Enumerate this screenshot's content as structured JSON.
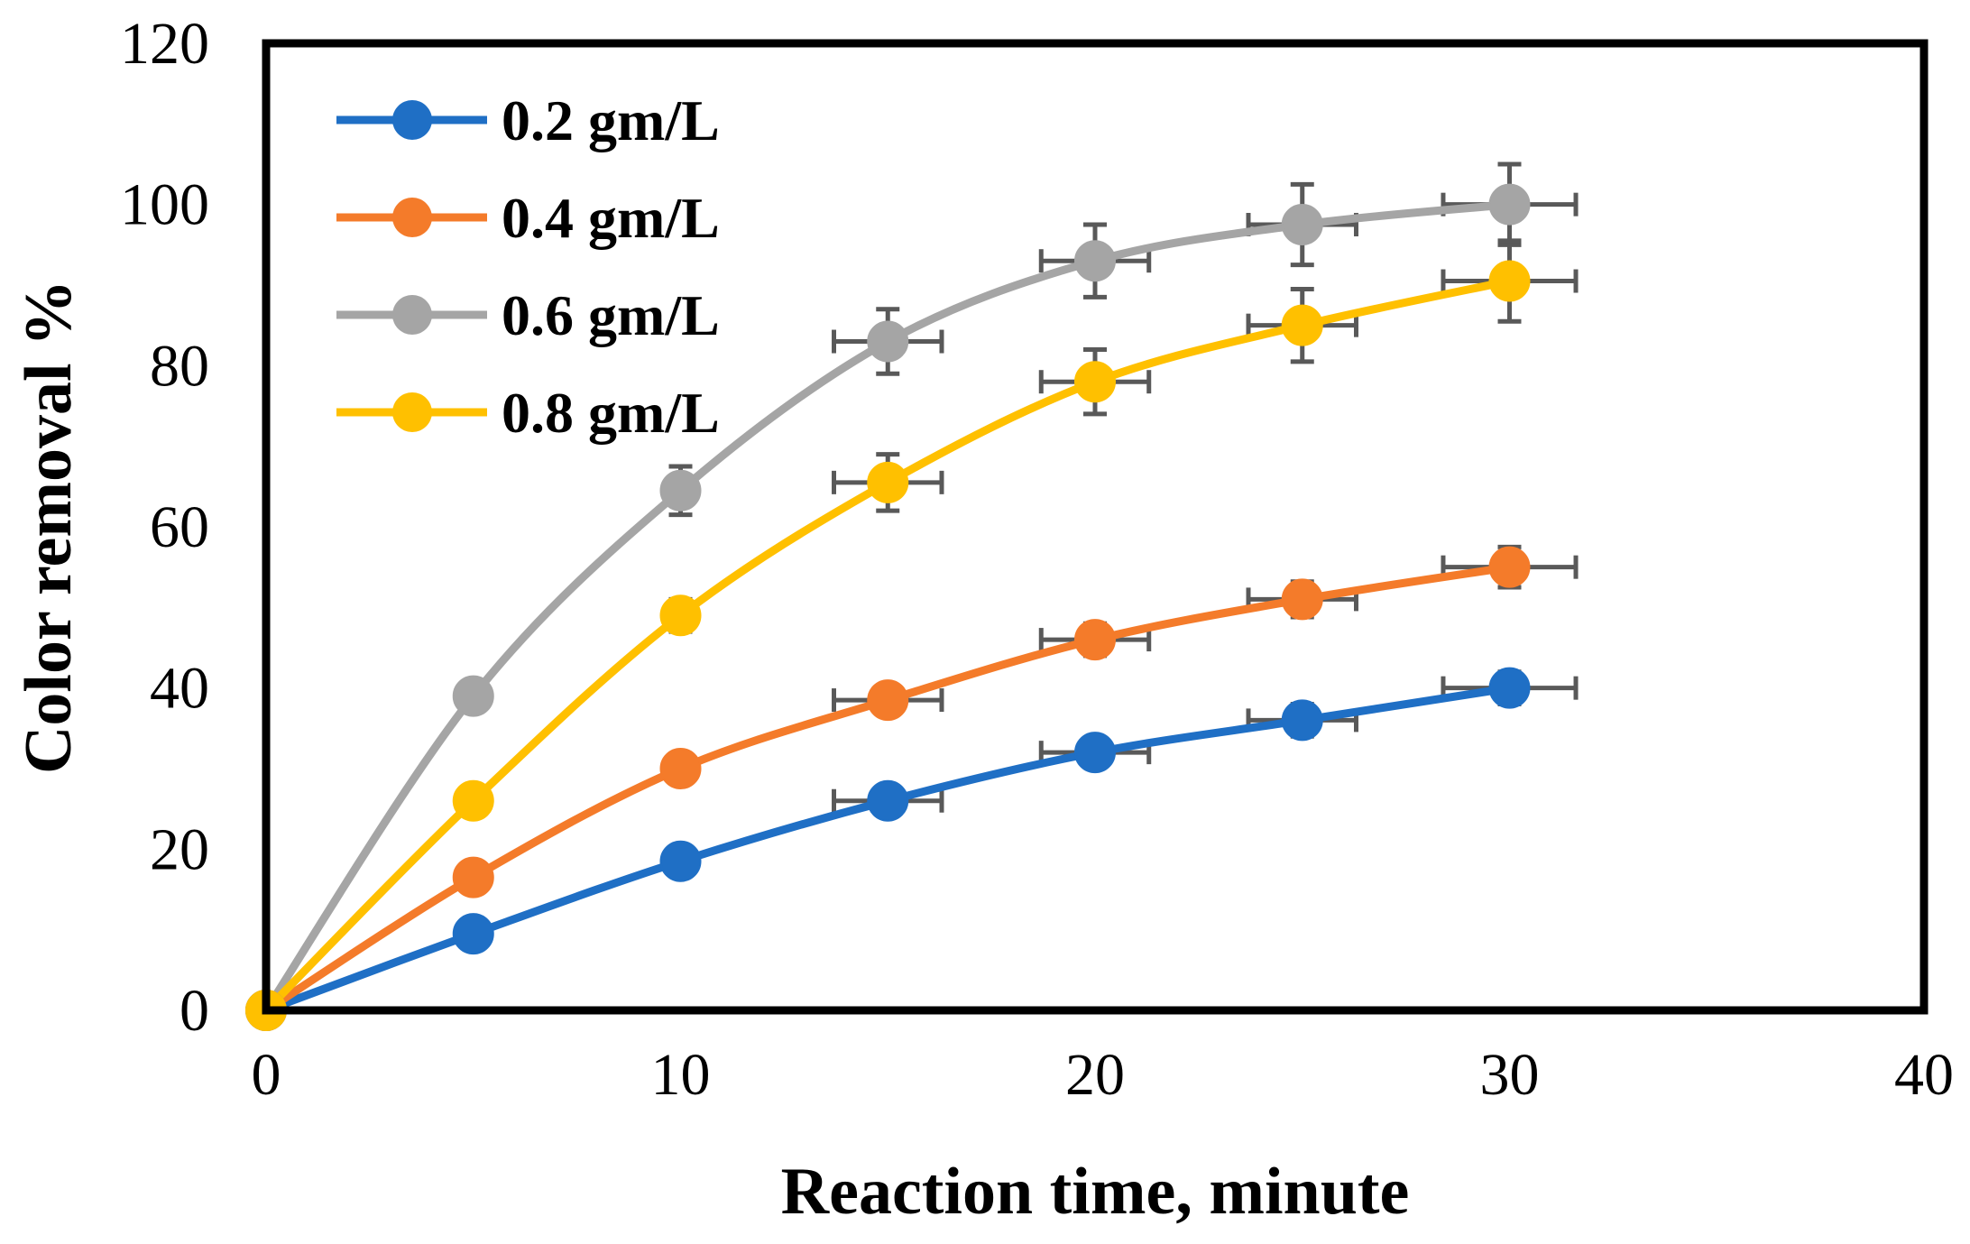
{
  "chart_data": {
    "type": "line",
    "title": "",
    "xlabel": "Reaction time, minute",
    "ylabel": "Color removal %",
    "xlim": [
      0,
      40
    ],
    "ylim": [
      0,
      120
    ],
    "xticks": [
      0,
      10,
      20,
      30,
      40
    ],
    "yticks": [
      0,
      20,
      40,
      60,
      80,
      100,
      120
    ],
    "x": [
      0,
      5,
      10,
      15,
      20,
      25,
      30
    ],
    "error_bars": {
      "x": 1.5,
      "y": 2
    },
    "legend_position": "top-left",
    "series": [
      {
        "name": "0.2 gm/L",
        "color": "#1F6FC5",
        "values": [
          0,
          9.5,
          18.5,
          26,
          32,
          36,
          40
        ],
        "yerr": [
          0,
          1,
          1.5,
          1.8,
          1.8,
          2,
          2
        ],
        "xerr": [
          0,
          0,
          0,
          1.3,
          1.3,
          1.3,
          1.6
        ]
      },
      {
        "name": "0.4 gm/L",
        "color": "#F47B2A",
        "values": [
          0,
          16.5,
          30,
          38.5,
          46,
          51,
          55
        ],
        "yerr": [
          0,
          1,
          1.5,
          1.8,
          2,
          2.2,
          2.5
        ],
        "xerr": [
          0,
          0,
          0,
          1.3,
          1.3,
          1.3,
          1.6
        ]
      },
      {
        "name": "0.6 gm/L",
        "color": "#A5A5A5",
        "values": [
          0,
          39,
          64.5,
          83,
          93,
          97.5,
          100
        ],
        "yerr": [
          0,
          1,
          3,
          4,
          4.5,
          5,
          5
        ],
        "xerr": [
          0,
          0,
          0,
          1.3,
          1.3,
          1.3,
          1.6
        ]
      },
      {
        "name": "0.8 gm/L",
        "color": "#FFC000",
        "values": [
          0,
          26,
          49,
          65.5,
          78,
          85,
          90.5
        ],
        "yerr": [
          0,
          1,
          2,
          3.5,
          4,
          4.5,
          5
        ],
        "xerr": [
          0,
          0,
          0,
          1.3,
          1.3,
          1.3,
          1.6
        ]
      }
    ]
  }
}
